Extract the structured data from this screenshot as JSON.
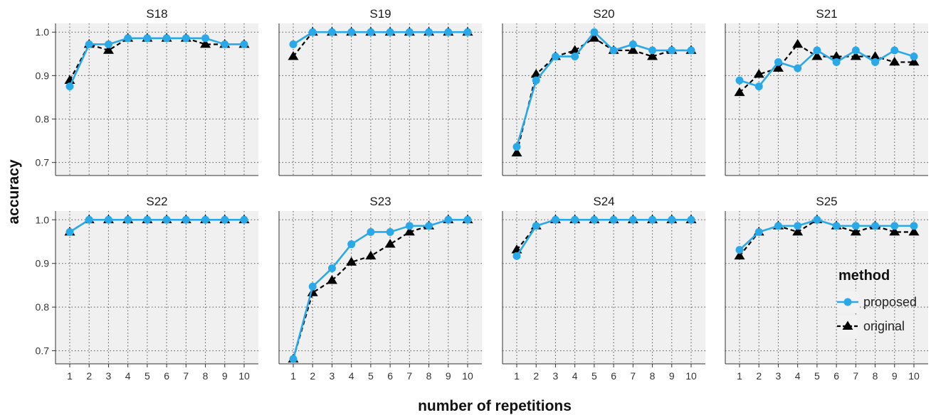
{
  "chart_data": {
    "type": "line",
    "xlabel": "number of repetitions",
    "ylabel": "accuracy",
    "x": [
      1,
      2,
      3,
      4,
      5,
      6,
      7,
      8,
      9,
      10
    ],
    "x_ticks": [
      "1",
      "2",
      "3",
      "4",
      "5",
      "6",
      "7",
      "8",
      "9",
      "10"
    ],
    "y_ticks": [
      "0.7",
      "0.8",
      "0.9",
      "1.0"
    ],
    "ylim": [
      0.67,
      1.02
    ],
    "grid": true,
    "grid_style": "dotted",
    "legend": {
      "title": "method",
      "placement": "right, over the S25 panel",
      "entries": [
        "proposed",
        "original"
      ]
    },
    "colors": {
      "proposed": "#29a9e8",
      "original": "#000000",
      "panel_background": "#f0f0f0"
    },
    "markers": {
      "proposed": "circle, solid line",
      "original": "triangle, dashed line"
    },
    "panels": [
      {
        "label": "S18",
        "series": [
          {
            "name": "proposed",
            "values": [
              0.875,
              0.972,
              0.972,
              0.986,
              0.986,
              0.986,
              0.986,
              0.986,
              0.972,
              0.972
            ]
          },
          {
            "name": "original",
            "values": [
              0.889,
              0.972,
              0.958,
              0.986,
              0.986,
              0.986,
              0.986,
              0.972,
              0.972,
              0.972
            ]
          }
        ]
      },
      {
        "label": "S19",
        "series": [
          {
            "name": "proposed",
            "values": [
              0.972,
              1.0,
              1.0,
              1.0,
              1.0,
              1.0,
              1.0,
              1.0,
              1.0,
              1.0
            ]
          },
          {
            "name": "original",
            "values": [
              0.944,
              1.0,
              1.0,
              1.0,
              1.0,
              1.0,
              1.0,
              1.0,
              1.0,
              1.0
            ]
          }
        ]
      },
      {
        "label": "S20",
        "series": [
          {
            "name": "proposed",
            "values": [
              0.736,
              0.889,
              0.944,
              0.944,
              1.0,
              0.958,
              0.972,
              0.958,
              0.958,
              0.958
            ]
          },
          {
            "name": "original",
            "values": [
              0.722,
              0.903,
              0.944,
              0.958,
              0.986,
              0.958,
              0.958,
              0.944,
              0.958,
              0.958
            ]
          }
        ]
      },
      {
        "label": "S21",
        "series": [
          {
            "name": "proposed",
            "values": [
              0.889,
              0.875,
              0.931,
              0.917,
              0.958,
              0.931,
              0.958,
              0.931,
              0.958,
              0.944
            ]
          },
          {
            "name": "original",
            "values": [
              0.861,
              0.903,
              0.917,
              0.972,
              0.944,
              0.944,
              0.944,
              0.944,
              0.931,
              0.931
            ]
          }
        ]
      },
      {
        "label": "S22",
        "series": [
          {
            "name": "proposed",
            "values": [
              0.972,
              1.0,
              1.0,
              1.0,
              1.0,
              1.0,
              1.0,
              1.0,
              1.0,
              1.0
            ]
          },
          {
            "name": "original",
            "values": [
              0.972,
              1.0,
              1.0,
              1.0,
              1.0,
              1.0,
              1.0,
              1.0,
              1.0,
              1.0
            ]
          }
        ]
      },
      {
        "label": "S23",
        "series": [
          {
            "name": "proposed",
            "values": [
              0.681,
              0.847,
              0.889,
              0.944,
              0.972,
              0.972,
              0.986,
              0.986,
              1.0,
              1.0
            ]
          },
          {
            "name": "original",
            "values": [
              0.681,
              0.833,
              0.861,
              0.903,
              0.917,
              0.944,
              0.972,
              0.986,
              1.0,
              1.0
            ]
          }
        ]
      },
      {
        "label": "S24",
        "series": [
          {
            "name": "proposed",
            "values": [
              0.917,
              0.986,
              1.0,
              1.0,
              1.0,
              1.0,
              1.0,
              1.0,
              1.0,
              1.0
            ]
          },
          {
            "name": "original",
            "values": [
              0.931,
              0.986,
              1.0,
              1.0,
              1.0,
              1.0,
              1.0,
              1.0,
              1.0,
              1.0
            ]
          }
        ]
      },
      {
        "label": "S25",
        "series": [
          {
            "name": "proposed",
            "values": [
              0.931,
              0.972,
              0.986,
              0.986,
              1.0,
              0.986,
              0.986,
              0.986,
              0.986,
              0.986
            ]
          },
          {
            "name": "original",
            "values": [
              0.917,
              0.972,
              0.986,
              0.972,
              1.0,
              0.986,
              0.972,
              0.986,
              0.972,
              0.972
            ]
          }
        ]
      }
    ]
  }
}
